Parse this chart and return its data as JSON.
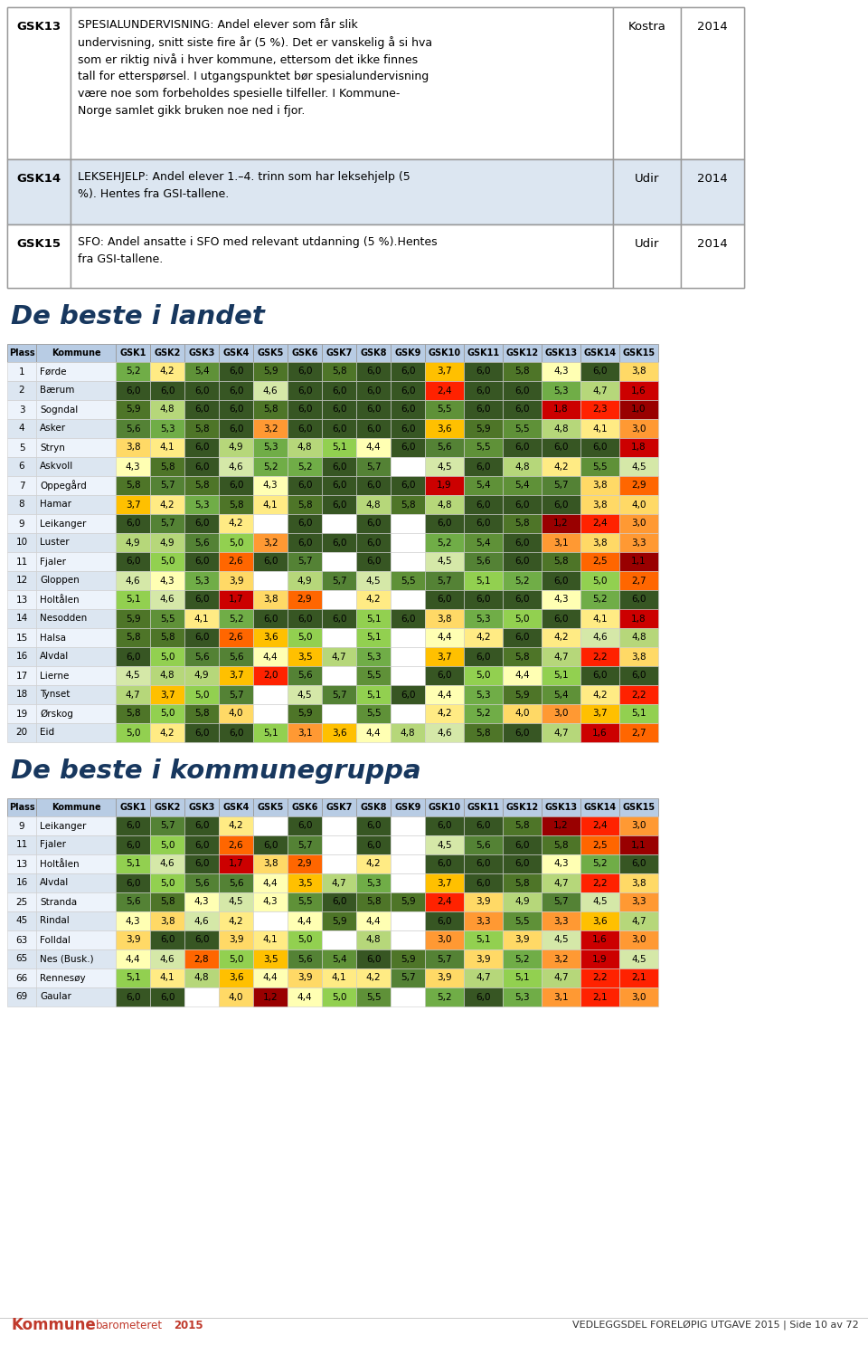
{
  "top_table": {
    "rows": [
      {
        "id": "GSK13",
        "text_lines": [
          "SPESIALUNDERVISNING: Andel elever som får slik",
          "undervisning, snitt siste fire år (5 %). Det er vanskelig å si hva",
          "som er riktig nivå i hver kommune, ettersom det ikke finnes",
          "tall for etterspørsel. I utgangspunktet bør spesialundervisning",
          "være noe som forbeholdes spesielle tilfeller. I Kommune-",
          "Norge samlet gikk bruken noe ned i fjor."
        ],
        "source": "Kostra",
        "year": "2014",
        "bg": "#ffffff"
      },
      {
        "id": "GSK14",
        "text_lines": [
          "LEKSEHJELP: Andel elever 1.–4. trinn som har leksehjelp (5",
          "%). Hentes fra GSI-tallene."
        ],
        "source": "Udir",
        "year": "2014",
        "bg": "#dce6f1"
      },
      {
        "id": "GSK15",
        "text_lines": [
          "SFO: Andel ansatte i SFO med relevant utdanning (5 %).Hentes",
          "fra GSI-tallene."
        ],
        "source": "Udir",
        "year": "2014",
        "bg": "#ffffff"
      }
    ]
  },
  "section1_title": "De beste i landet",
  "section2_title": "De beste i kommunegruppa",
  "col_headers": [
    "Plass",
    "Kommune",
    "GSK1",
    "GSK2",
    "GSK3",
    "GSK4",
    "GSK5",
    "GSK6",
    "GSK7",
    "GSK8",
    "GSK9",
    "GSK10",
    "GSK11",
    "GSK12",
    "GSK13",
    "GSK14",
    "GSK15"
  ],
  "table1": [
    [
      1,
      "Førde",
      5.2,
      4.2,
      5.4,
      6.0,
      5.9,
      6.0,
      5.8,
      6.0,
      6.0,
      3.7,
      6.0,
      5.8,
      4.3,
      6.0,
      3.8
    ],
    [
      2,
      "Bærum",
      6.0,
      6.0,
      6.0,
      6.0,
      4.6,
      6.0,
      6.0,
      6.0,
      6.0,
      2.4,
      6.0,
      6.0,
      5.3,
      4.7,
      1.6
    ],
    [
      3,
      "Sogndal",
      5.9,
      4.8,
      6.0,
      6.0,
      5.8,
      6.0,
      6.0,
      6.0,
      6.0,
      5.5,
      6.0,
      6.0,
      1.8,
      2.3,
      1.0
    ],
    [
      4,
      "Asker",
      5.6,
      5.3,
      5.8,
      6.0,
      3.2,
      6.0,
      6.0,
      6.0,
      6.0,
      3.6,
      5.9,
      5.5,
      4.8,
      4.1,
      3.0
    ],
    [
      5,
      "Stryn",
      3.8,
      4.1,
      6.0,
      4.9,
      5.3,
      4.8,
      5.1,
      4.4,
      6.0,
      5.6,
      5.5,
      6.0,
      6.0,
      6.0,
      1.8
    ],
    [
      6,
      "Askvoll",
      4.3,
      5.8,
      6.0,
      4.6,
      5.2,
      5.2,
      6.0,
      5.7,
      null,
      4.5,
      6.0,
      4.8,
      4.2,
      5.5,
      4.5
    ],
    [
      7,
      "Oppegård",
      5.8,
      5.7,
      5.8,
      6.0,
      4.3,
      6.0,
      6.0,
      6.0,
      6.0,
      1.9,
      5.4,
      5.4,
      5.7,
      3.8,
      2.9
    ],
    [
      8,
      "Hamar",
      3.7,
      4.2,
      5.3,
      5.8,
      4.1,
      5.8,
      6.0,
      4.8,
      5.8,
      4.8,
      6.0,
      6.0,
      6.0,
      3.8,
      4.0
    ],
    [
      9,
      "Leikanger",
      6.0,
      5.7,
      6.0,
      4.2,
      null,
      6.0,
      null,
      6.0,
      null,
      6.0,
      6.0,
      5.8,
      1.2,
      2.4,
      3.0
    ],
    [
      10,
      "Luster",
      4.9,
      4.9,
      5.6,
      5.0,
      3.2,
      6.0,
      6.0,
      6.0,
      null,
      5.2,
      5.4,
      6.0,
      3.1,
      3.8,
      3.3
    ],
    [
      11,
      "Fjaler",
      6.0,
      5.0,
      6.0,
      2.6,
      6.0,
      5.7,
      null,
      6.0,
      null,
      4.5,
      5.6,
      6.0,
      5.8,
      2.5,
      1.1
    ],
    [
      12,
      "Gloppen",
      4.6,
      4.3,
      5.3,
      3.9,
      null,
      4.9,
      5.7,
      4.5,
      5.5,
      5.7,
      5.1,
      5.2,
      6.0,
      5.0,
      2.7
    ],
    [
      13,
      "Holtålen",
      5.1,
      4.6,
      6.0,
      1.7,
      3.8,
      2.9,
      null,
      4.2,
      null,
      6.0,
      6.0,
      6.0,
      4.3,
      5.2,
      6.0
    ],
    [
      14,
      "Nesodden",
      5.9,
      5.5,
      4.1,
      5.2,
      6.0,
      6.0,
      6.0,
      5.1,
      6.0,
      3.8,
      5.3,
      5.0,
      6.0,
      4.1,
      1.8
    ],
    [
      15,
      "Halsa",
      5.8,
      5.8,
      6.0,
      2.6,
      3.6,
      5.0,
      null,
      5.1,
      null,
      4.4,
      4.2,
      6.0,
      4.2,
      4.6,
      4.8
    ],
    [
      16,
      "Alvdal",
      6.0,
      5.0,
      5.6,
      5.6,
      4.4,
      3.5,
      4.7,
      5.3,
      null,
      3.7,
      6.0,
      5.8,
      4.7,
      2.2,
      3.8
    ],
    [
      17,
      "Lierne",
      4.5,
      4.8,
      4.9,
      3.7,
      2.0,
      5.6,
      null,
      5.5,
      null,
      6.0,
      5.0,
      4.4,
      5.1,
      6.0,
      6.0
    ],
    [
      18,
      "Tynset",
      4.7,
      3.7,
      5.0,
      5.7,
      null,
      4.5,
      5.7,
      5.1,
      6.0,
      4.4,
      5.3,
      5.9,
      5.4,
      4.2,
      2.2
    ],
    [
      19,
      "Ørskog",
      5.8,
      5.0,
      5.8,
      4.0,
      null,
      5.9,
      null,
      5.5,
      null,
      4.2,
      5.2,
      4.0,
      3.0,
      3.7,
      5.1
    ],
    [
      20,
      "Eid",
      5.0,
      4.2,
      6.0,
      6.0,
      5.1,
      3.1,
      3.6,
      4.4,
      4.8,
      4.6,
      5.8,
      6.0,
      4.7,
      1.6,
      2.7
    ]
  ],
  "table2": [
    [
      9,
      "Leikanger",
      6.0,
      5.7,
      6.0,
      4.2,
      null,
      6.0,
      null,
      6.0,
      null,
      6.0,
      6.0,
      5.8,
      1.2,
      2.4,
      3.0
    ],
    [
      11,
      "Fjaler",
      6.0,
      5.0,
      6.0,
      2.6,
      6.0,
      5.7,
      null,
      6.0,
      null,
      4.5,
      5.6,
      6.0,
      5.8,
      2.5,
      1.1
    ],
    [
      13,
      "Holtålen",
      5.1,
      4.6,
      6.0,
      1.7,
      3.8,
      2.9,
      null,
      4.2,
      null,
      6.0,
      6.0,
      6.0,
      4.3,
      5.2,
      6.0
    ],
    [
      16,
      "Alvdal",
      6.0,
      5.0,
      5.6,
      5.6,
      4.4,
      3.5,
      4.7,
      5.3,
      null,
      3.7,
      6.0,
      5.8,
      4.7,
      2.2,
      3.8
    ],
    [
      25,
      "Stranda",
      5.6,
      5.8,
      4.3,
      4.5,
      4.3,
      5.5,
      6.0,
      5.8,
      5.9,
      2.4,
      3.9,
      4.9,
      5.7,
      4.5,
      3.3
    ],
    [
      45,
      "Rindal",
      4.3,
      3.8,
      4.6,
      4.2,
      null,
      4.4,
      5.9,
      4.4,
      null,
      6.0,
      3.3,
      5.5,
      3.3,
      3.6,
      4.7
    ],
    [
      63,
      "Folldal",
      3.9,
      6.0,
      6.0,
      3.9,
      4.1,
      5.0,
      null,
      4.8,
      null,
      3.0,
      5.1,
      3.9,
      4.5,
      1.6,
      3.0
    ],
    [
      65,
      "Nes (Busk.)",
      4.4,
      4.6,
      2.8,
      5.0,
      3.5,
      5.6,
      5.4,
      6.0,
      5.9,
      5.7,
      3.9,
      5.2,
      3.2,
      1.9,
      4.5
    ],
    [
      66,
      "Rennesøy",
      5.1,
      4.1,
      4.8,
      3.6,
      4.4,
      3.9,
      4.1,
      4.2,
      5.7,
      3.9,
      4.7,
      5.1,
      4.7,
      2.2,
      2.1
    ],
    [
      69,
      "Gaular",
      6.0,
      6.0,
      null,
      4.0,
      1.2,
      4.4,
      5.0,
      5.5,
      null,
      5.2,
      6.0,
      5.3,
      3.1,
      2.1,
      3.0
    ]
  ],
  "footer_right": "VEDLEGGSDEL FORELØPIG UTGAVE 2015 | Side 10 av 72",
  "header_bg": "#b8cce4",
  "alt_row_bg": "#dce6f1",
  "white_row_bg": "#ffffff",
  "light_row_bg": "#edf3fb"
}
